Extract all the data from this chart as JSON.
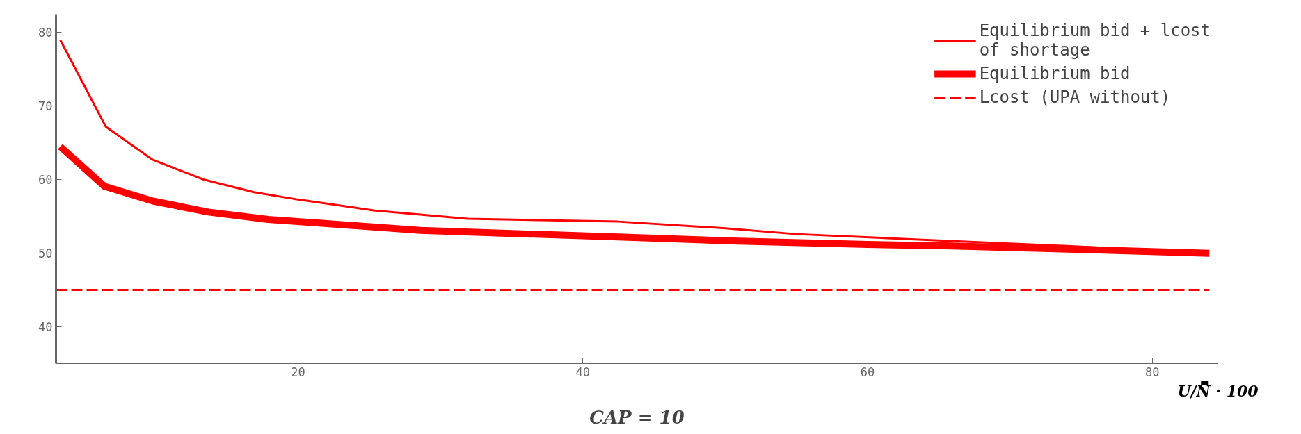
{
  "chart_data": {
    "type": "line",
    "xlabel": "U/N̿ · 100",
    "annotations": [
      "CAP = 10"
    ],
    "xlim": [
      3,
      84.6
    ],
    "ylim": [
      35,
      82.5
    ],
    "xticks": [
      20,
      40,
      60,
      80
    ],
    "yticks": [
      40,
      50,
      60,
      70,
      80
    ],
    "grid": false,
    "legend": "top right",
    "series": [
      {
        "name": "Equilibrium bid + lcost\nof shortage",
        "color": "#ff0000",
        "line_style": "solid",
        "x": [
          3.3,
          6.5,
          9.8,
          13.4,
          16.9,
          20,
          25.4,
          31.9,
          42.5,
          50,
          55,
          65.5,
          75,
          84
        ],
        "values": [
          79,
          67.2,
          62.7,
          60,
          58.3,
          57.3,
          55.8,
          54.7,
          54.3,
          53.4,
          52.6,
          51.7,
          50.9,
          50.0
        ]
      },
      {
        "name": "Equilibrium bid",
        "color": "#ff0000",
        "line_style": "solid",
        "x": [
          3.3,
          6.4,
          9.8,
          13.7,
          17.9,
          22.2,
          28.6,
          42.5,
          50,
          60,
          65.5,
          75,
          84
        ],
        "values": [
          64.5,
          59.1,
          57.1,
          55.6,
          54.6,
          54.0,
          53.1,
          52.2,
          51.7,
          51.2,
          51.0,
          50.5,
          50.0
        ]
      },
      {
        "name": "Lcost (UPA without)",
        "color": "#ff0000",
        "line_style": "dashed",
        "x": [
          3,
          84
        ],
        "values": [
          45,
          45
        ]
      }
    ]
  }
}
